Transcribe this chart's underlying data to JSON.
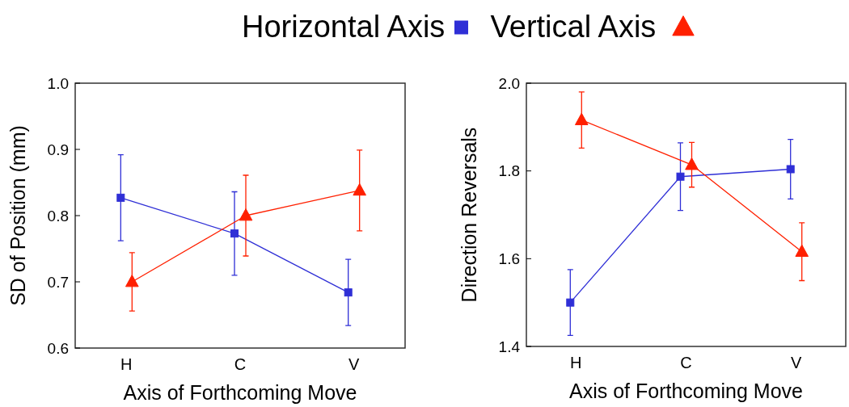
{
  "chart_data": [
    {
      "type": "line",
      "ylabel": "SD of Position (mm)",
      "xlabel": "Axis of Forthcoming Move",
      "categories": [
        "H",
        "C",
        "V"
      ],
      "ylim": [
        0.6,
        1
      ],
      "yticks": [
        0.6,
        0.7,
        0.8,
        0.9,
        {
          "value": 1,
          "label": "1.0"
        }
      ],
      "grid": false,
      "legend": "top",
      "series": [
        {
          "name": "Horizontal Axis",
          "color": "#2f2fd6",
          "marker": "square",
          "values": [
            0.827,
            0.773,
            0.684
          ],
          "errors": [
            0.065,
            0.063,
            0.05
          ]
        },
        {
          "name": "Vertical Axis",
          "color": "#ff2000",
          "marker": "triangle",
          "values": [
            0.7,
            0.8,
            0.838
          ],
          "errors": [
            0.044,
            0.061,
            0.061
          ]
        }
      ]
    },
    {
      "type": "line",
      "ylabel": "Direction Reversals",
      "xlabel": "Axis of Forthcoming Move",
      "categories": [
        "H",
        "C",
        "V"
      ],
      "ylim": [
        1.4,
        2
      ],
      "yticks": [
        1.4,
        1.6,
        1.8,
        {
          "value": 2,
          "label": "2.0"
        }
      ],
      "grid": false,
      "series": [
        {
          "color": "#2f2fd6",
          "marker": "square",
          "values": [
            1.5,
            1.787,
            1.804
          ],
          "errors": [
            0.075,
            0.077,
            0.068
          ]
        },
        {
          "color": "#ff2000",
          "marker": "triangle",
          "values": [
            1.916,
            1.814,
            1.616
          ],
          "errors": [
            0.064,
            0.051,
            0.066
          ]
        }
      ]
    }
  ]
}
